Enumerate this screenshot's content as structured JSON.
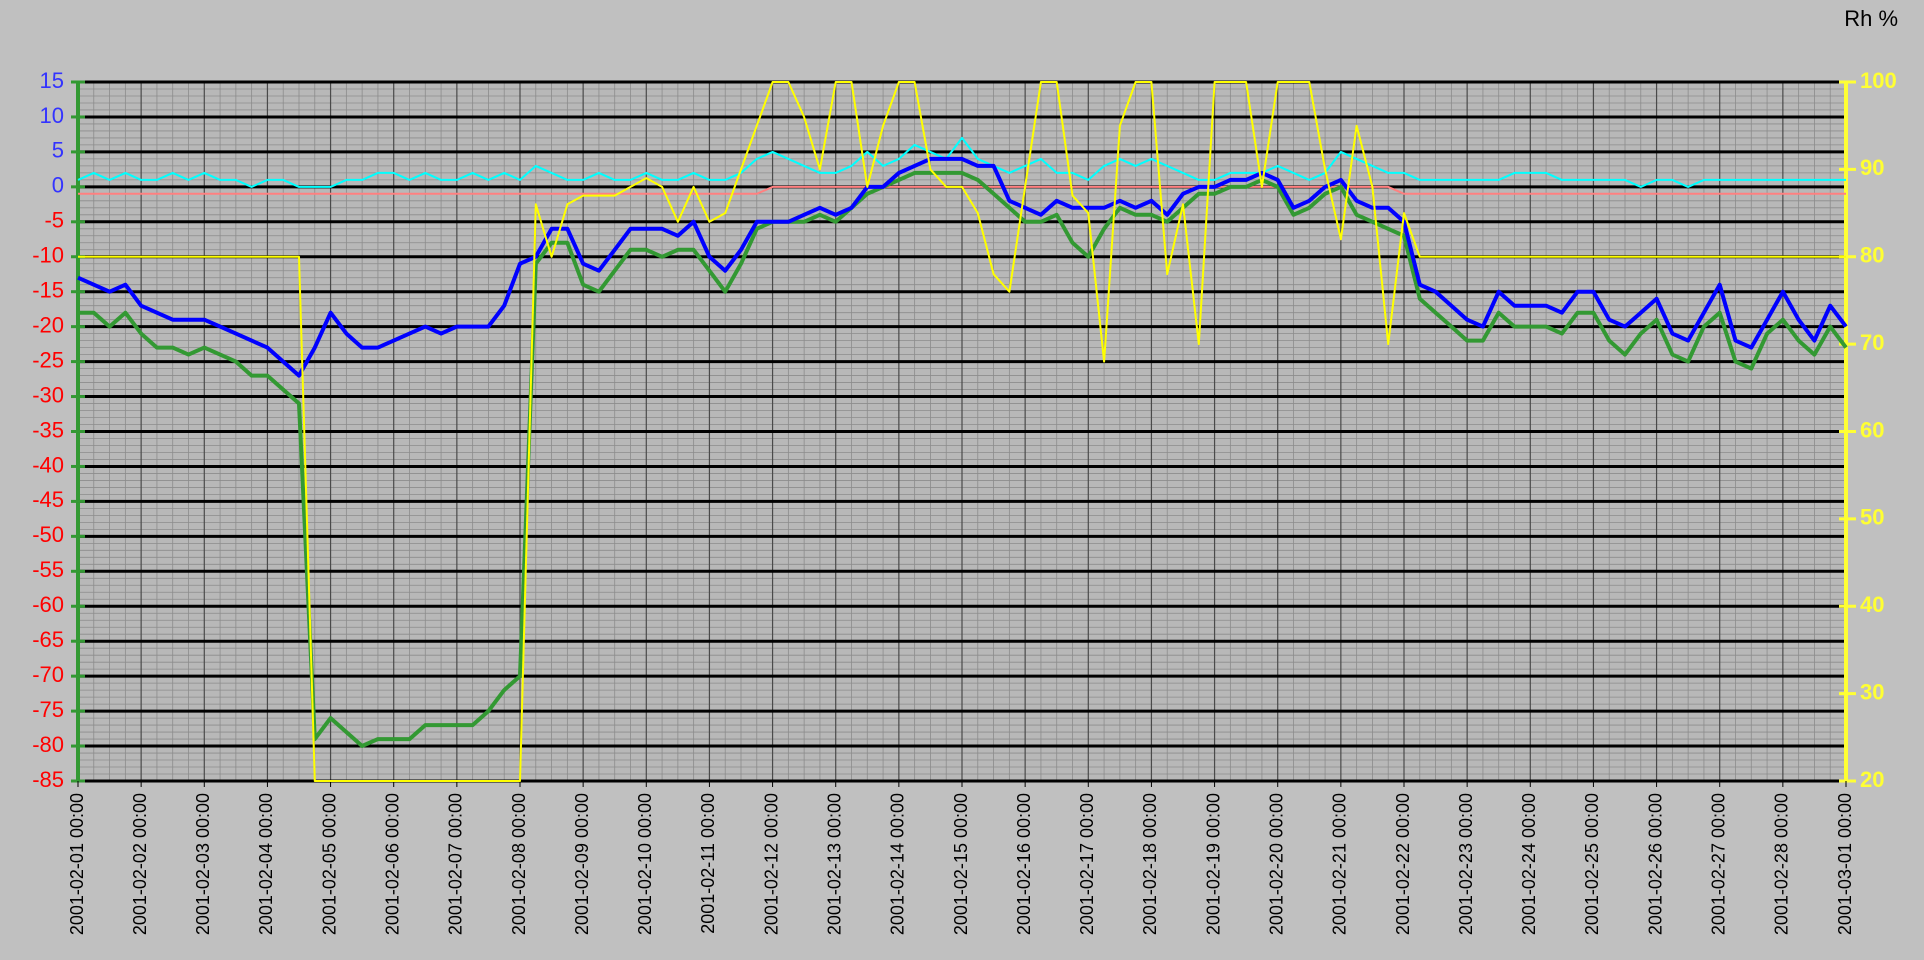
{
  "chart_data": {
    "type": "line",
    "y2_label": "Rh %",
    "x": [
      "2001-02-01 00:00",
      "2001-02-01 06:00",
      "2001-02-01 12:00",
      "2001-02-01 18:00",
      "2001-02-02 00:00",
      "2001-02-02 06:00",
      "2001-02-02 12:00",
      "2001-02-02 18:00",
      "2001-02-03 00:00",
      "2001-02-03 06:00",
      "2001-02-03 12:00",
      "2001-02-03 18:00",
      "2001-02-04 00:00",
      "2001-02-04 06:00",
      "2001-02-04 12:00",
      "2001-02-04 18:00",
      "2001-02-05 00:00",
      "2001-02-05 06:00",
      "2001-02-05 12:00",
      "2001-02-05 18:00",
      "2001-02-06 00:00",
      "2001-02-06 06:00",
      "2001-02-06 12:00",
      "2001-02-06 18:00",
      "2001-02-07 00:00",
      "2001-02-07 06:00",
      "2001-02-07 12:00",
      "2001-02-07 18:00",
      "2001-02-08 00:00",
      "2001-02-08 06:00",
      "2001-02-08 12:00",
      "2001-02-08 18:00",
      "2001-02-09 00:00",
      "2001-02-09 06:00",
      "2001-02-09 12:00",
      "2001-02-09 18:00",
      "2001-02-10 00:00",
      "2001-02-10 06:00",
      "2001-02-10 12:00",
      "2001-02-10 18:00",
      "2001-02-11 00:00",
      "2001-02-11 06:00",
      "2001-02-11 12:00",
      "2001-02-11 18:00",
      "2001-02-12 00:00",
      "2001-02-12 06:00",
      "2001-02-12 12:00",
      "2001-02-12 18:00",
      "2001-02-13 00:00",
      "2001-02-13 06:00",
      "2001-02-13 12:00",
      "2001-02-13 18:00",
      "2001-02-14 00:00",
      "2001-02-14 06:00",
      "2001-02-14 12:00",
      "2001-02-14 18:00",
      "2001-02-15 00:00",
      "2001-02-15 06:00",
      "2001-02-15 12:00",
      "2001-02-15 18:00",
      "2001-02-16 00:00",
      "2001-02-16 06:00",
      "2001-02-16 12:00",
      "2001-02-16 18:00",
      "2001-02-17 00:00",
      "2001-02-17 06:00",
      "2001-02-17 12:00",
      "2001-02-17 18:00",
      "2001-02-18 00:00",
      "2001-02-18 06:00",
      "2001-02-18 12:00",
      "2001-02-18 18:00",
      "2001-02-19 00:00",
      "2001-02-19 06:00",
      "2001-02-19 12:00",
      "2001-02-19 18:00",
      "2001-02-20 00:00",
      "2001-02-20 06:00",
      "2001-02-20 12:00",
      "2001-02-20 18:00",
      "2001-02-21 00:00",
      "2001-02-21 06:00",
      "2001-02-21 12:00",
      "2001-02-21 18:00",
      "2001-02-22 00:00",
      "2001-02-22 06:00",
      "2001-02-22 12:00",
      "2001-02-22 18:00",
      "2001-02-23 00:00",
      "2001-02-23 06:00",
      "2001-02-23 12:00",
      "2001-02-23 18:00",
      "2001-02-24 00:00",
      "2001-02-24 06:00",
      "2001-02-24 12:00",
      "2001-02-24 18:00",
      "2001-02-25 00:00",
      "2001-02-25 06:00",
      "2001-02-25 12:00",
      "2001-02-25 18:00",
      "2001-02-26 00:00",
      "2001-02-26 06:00",
      "2001-02-26 12:00",
      "2001-02-26 18:00",
      "2001-02-27 00:00",
      "2001-02-27 06:00",
      "2001-02-27 12:00",
      "2001-02-27 18:00",
      "2001-02-28 00:00",
      "2001-02-28 06:00",
      "2001-02-28 12:00",
      "2001-02-28 18:00",
      "2001-03-01 00:00"
    ],
    "ylim": [
      -85,
      15
    ],
    "yticks": [
      -85,
      -80,
      -75,
      -70,
      -65,
      -60,
      -55,
      -50,
      -45,
      -40,
      -35,
      -30,
      -25,
      -20,
      -15,
      -10,
      -5,
      0,
      5,
      10,
      15
    ],
    "y2lim": [
      20,
      100
    ],
    "y2ticks": [
      20,
      30,
      40,
      50,
      60,
      70,
      80,
      90,
      100
    ],
    "ytick_color_above_zero": "#3333ff",
    "ytick_color_below_zero": "#ff0000",
    "y_axis_color": "#339933",
    "y2_axis_color": "#ffff33",
    "grid": true,
    "series": [
      {
        "color": "#ff8080",
        "width": 2,
        "values": [
          -1,
          -1,
          -1,
          -1,
          -1,
          -1,
          -1,
          -1,
          -1,
          -1,
          -1,
          -1,
          -1,
          -1,
          -1,
          -1,
          -1,
          -1,
          -1,
          -1,
          -1,
          -1,
          -1,
          -1,
          -1,
          -1,
          -1,
          -1,
          -1,
          -1,
          -1,
          -1,
          -1,
          -1,
          -1,
          -1,
          -1,
          -1,
          -1,
          -1,
          -1,
          -1,
          -1,
          -1,
          0,
          0,
          0,
          0,
          0,
          0,
          0,
          0,
          0,
          0,
          0,
          0,
          0,
          0,
          0,
          0,
          0,
          0,
          0,
          0,
          0,
          0,
          0,
          0,
          0,
          0,
          0,
          0,
          0,
          0,
          0,
          0,
          0,
          0,
          0,
          0,
          0,
          0,
          0,
          0,
          -1,
          -1,
          -1,
          -1,
          -1,
          -1,
          -1,
          -1,
          -1,
          -1,
          -1,
          -1,
          -1,
          -1,
          -1,
          -1,
          -1,
          -1,
          -1,
          -1,
          -1,
          -1,
          -1,
          -1,
          -1,
          -1,
          -1,
          -1,
          -1
        ]
      },
      {
        "color": "#00ffff",
        "width": 2,
        "values": [
          1,
          2,
          1,
          2,
          1,
          1,
          2,
          1,
          2,
          1,
          1,
          0,
          1,
          1,
          0,
          0,
          0,
          1,
          1,
          2,
          2,
          1,
          2,
          1,
          1,
          2,
          1,
          2,
          1,
          3,
          2,
          1,
          1,
          2,
          1,
          1,
          2,
          1,
          1,
          2,
          1,
          1,
          2,
          4,
          5,
          4,
          3,
          2,
          2,
          3,
          5,
          3,
          4,
          6,
          5,
          4,
          7,
          4,
          3,
          2,
          3,
          4,
          2,
          2,
          1,
          3,
          4,
          3,
          4,
          3,
          2,
          1,
          1,
          2,
          2,
          2,
          3,
          2,
          1,
          2,
          5,
          4,
          3,
          2,
          2,
          1,
          1,
          1,
          1,
          1,
          1,
          2,
          2,
          2,
          1,
          1,
          1,
          1,
          1,
          0,
          1,
          1,
          0,
          1,
          1,
          1,
          1,
          1,
          1,
          1,
          1,
          1,
          1
        ]
      },
      {
        "color": "#339933",
        "width": 4,
        "values": [
          -18,
          -18,
          -20,
          -18,
          -21,
          -23,
          -23,
          -24,
          -23,
          -24,
          -25,
          -27,
          -27,
          -29,
          -31,
          -79,
          -76,
          -78,
          -80,
          -79,
          -79,
          -79,
          -77,
          -77,
          -77,
          -77,
          -75,
          -72,
          -70,
          -11,
          -8,
          -8,
          -14,
          -15,
          -12,
          -9,
          -9,
          -10,
          -9,
          -9,
          -12,
          -15,
          -11,
          -6,
          -5,
          -5,
          -5,
          -4,
          -5,
          -3,
          -1,
          0,
          1,
          2,
          2,
          2,
          2,
          1,
          -1,
          -3,
          -5,
          -5,
          -4,
          -8,
          -10,
          -6,
          -3,
          -4,
          -4,
          -5,
          -3,
          -1,
          -1,
          0,
          0,
          1,
          0,
          -4,
          -3,
          -1,
          0,
          -4,
          -5,
          -6,
          -7,
          -16,
          -18,
          -20,
          -22,
          -22,
          -18,
          -20,
          -20,
          -20,
          -21,
          -18,
          -18,
          -22,
          -24,
          -21,
          -19,
          -24,
          -25,
          -20,
          -18,
          -25,
          -26,
          -21,
          -19,
          -22,
          -24,
          -20,
          -23
        ]
      },
      {
        "color": "#0000ff",
        "width": 4,
        "values": [
          -13,
          -14,
          -15,
          -14,
          -17,
          -18,
          -19,
          -19,
          -19,
          -20,
          -21,
          -22,
          -23,
          -25,
          -27,
          -23,
          -18,
          -21,
          -23,
          -23,
          -22,
          -21,
          -20,
          -21,
          -20,
          -20,
          -20,
          -17,
          -11,
          -10,
          -6,
          -6,
          -11,
          -12,
          -9,
          -6,
          -6,
          -6,
          -7,
          -5,
          -10,
          -12,
          -9,
          -5,
          -5,
          -5,
          -4,
          -3,
          -4,
          -3,
          0,
          0,
          2,
          3,
          4,
          4,
          4,
          3,
          3,
          -2,
          -3,
          -4,
          -2,
          -3,
          -3,
          -3,
          -2,
          -3,
          -2,
          -4,
          -1,
          0,
          0,
          1,
          1,
          2,
          1,
          -3,
          -2,
          0,
          1,
          -2,
          -3,
          -3,
          -5,
          -14,
          -15,
          -17,
          -19,
          -20,
          -15,
          -17,
          -17,
          -17,
          -18,
          -15,
          -15,
          -19,
          -20,
          -18,
          -16,
          -21,
          -22,
          -18,
          -14,
          -22,
          -23,
          -19,
          -15,
          -19,
          -22,
          -17,
          -20
        ]
      },
      {
        "color": "#ffff00",
        "width": 2,
        "axis": "y2",
        "values": [
          80,
          80,
          80,
          80,
          80,
          80,
          80,
          80,
          80,
          80,
          80,
          80,
          80,
          80,
          80,
          20,
          20,
          20,
          20,
          20,
          20,
          20,
          20,
          20,
          20,
          20,
          20,
          20,
          20,
          86,
          80,
          86,
          87,
          87,
          87,
          88,
          89,
          88,
          84,
          88,
          84,
          85,
          90,
          95,
          100,
          100,
          96,
          90,
          100,
          100,
          88,
          95,
          100,
          100,
          90,
          88,
          88,
          85,
          78,
          76,
          88,
          100,
          100,
          87,
          85,
          68,
          95,
          100,
          100,
          78,
          86,
          70,
          100,
          100,
          100,
          88,
          100,
          100,
          100,
          90,
          82,
          95,
          88,
          70,
          85,
          80,
          80,
          80,
          80,
          80,
          80,
          80,
          80,
          80,
          80,
          80,
          80,
          80,
          80,
          80,
          80,
          80,
          80,
          80,
          80,
          80,
          80,
          80,
          80,
          80,
          80,
          80,
          80
        ]
      }
    ]
  }
}
